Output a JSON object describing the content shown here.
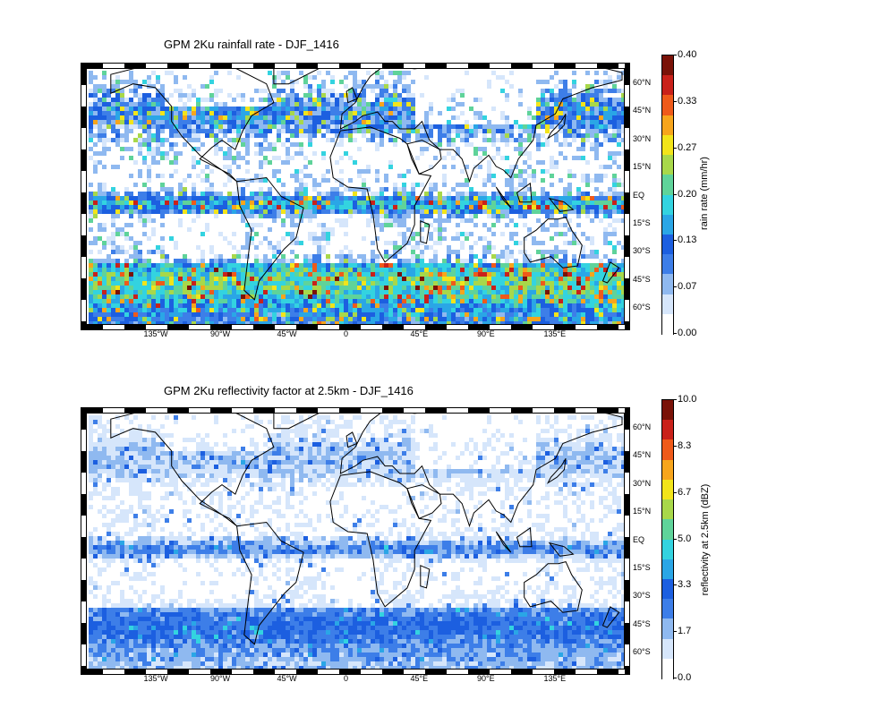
{
  "panels": [
    {
      "title": "GPM 2Ku rainfall rate - DJF_1416",
      "colorbar_title": "rain rate (mm/hr)",
      "colorbar_ticks": [
        "0.40",
        "0.33",
        "0.27",
        "0.20",
        "0.13",
        "0.07",
        "0.00"
      ],
      "colorbar_range": [
        0.0,
        0.4
      ],
      "field": "rain rate"
    },
    {
      "title": "GPM 2Ku reflectivity factor at 2.5km - DJF_1416",
      "colorbar_title": "reflectivity at 2.5km (dBZ)",
      "colorbar_ticks": [
        "10.0",
        "8.3",
        "6.7",
        "5.0",
        "3.3",
        "1.7",
        "0.0"
      ],
      "colorbar_range": [
        0.0,
        10.0
      ],
      "field": "reflectivity"
    }
  ],
  "lon_labels": [
    "135°W",
    "90°W",
    "45°W",
    "0",
    "45°E",
    "90°E",
    "135°E"
  ],
  "lat_labels": [
    "60°N",
    "45°N",
    "30°N",
    "15°N",
    "EQ",
    "15°S",
    "30°S",
    "45°S",
    "60°S"
  ],
  "colors": {
    "colormap": [
      "#ffffff",
      "#d6e6fb",
      "#8fb9f0",
      "#3d7ee8",
      "#1c5fe0",
      "#2aa6e6",
      "#33d3e0",
      "#5fd39a",
      "#a8d84a",
      "#f2e41a",
      "#f7a51c",
      "#ef5a1a",
      "#c9211a",
      "#7a1208"
    ]
  }
}
